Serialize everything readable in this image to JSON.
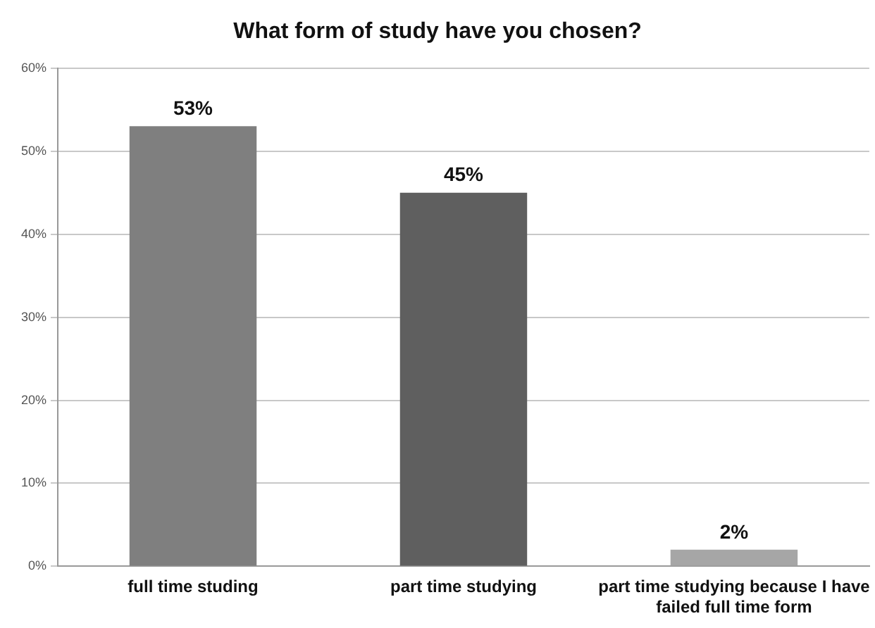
{
  "chart_data": {
    "type": "bar",
    "title": "What form of study have you chosen?",
    "categories": [
      "full time studing",
      "part time studying",
      "part time studying because I have failed full time form"
    ],
    "values": [
      53,
      45,
      2
    ],
    "colors": [
      "#7f7f7f",
      "#5f5f5f",
      "#a6a6a6"
    ],
    "value_labels": [
      "53%",
      "45%",
      "2%"
    ],
    "ylim": [
      0,
      60
    ],
    "yticks": [
      {
        "value": 0,
        "label": "0%"
      },
      {
        "value": 10,
        "label": "10%"
      },
      {
        "value": 20,
        "label": "20%"
      },
      {
        "value": 30,
        "label": "30%"
      },
      {
        "value": 40,
        "label": "40%"
      },
      {
        "value": 50,
        "label": "50%"
      },
      {
        "value": 60,
        "label": "60%"
      }
    ],
    "grid": "y",
    "legend": false
  }
}
